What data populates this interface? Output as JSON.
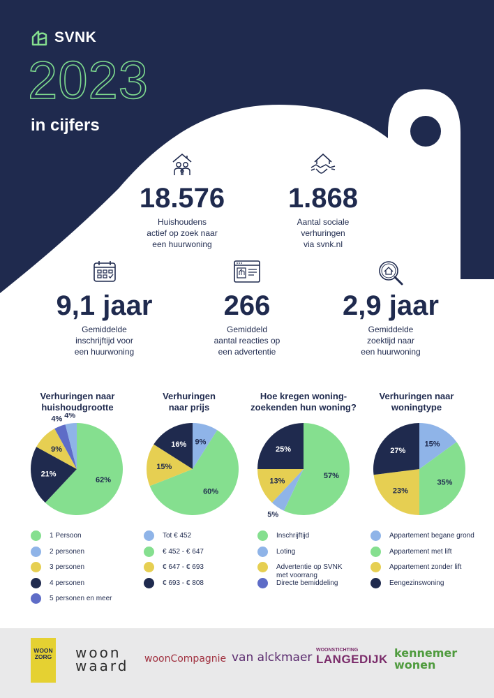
{
  "brand": {
    "name": "SVNK"
  },
  "header": {
    "year": "2023",
    "subtitle": "in cijfers"
  },
  "colors": {
    "navy": "#1f2a4e",
    "green": "#85df8f",
    "lightblue": "#8fb4e8",
    "yellow": "#e6cf52",
    "purple": "#5e6cc7"
  },
  "stats": [
    {
      "icon": "house-family-icon",
      "value": "18.576",
      "desc": "Huishoudens\nactief op zoek naar\neen huurwoning"
    },
    {
      "icon": "handshake-house-icon",
      "value": "1.868",
      "desc": "Aantal sociale\nverhuringen\nvia svnk.nl"
    },
    {
      "icon": "calendar-icon",
      "value": "9,1 jaar",
      "desc": "Gemiddelde\ninschrijftijd voor\neen huurwoning"
    },
    {
      "icon": "browser-ad-icon",
      "value": "266",
      "desc": "Gemiddeld\naantal reacties op\neen advertentie"
    },
    {
      "icon": "magnifier-house-icon",
      "value": "2,9 jaar",
      "desc": "Gemiddelde\nzoektijd naar\neen huurwoning"
    }
  ],
  "chart_data": [
    {
      "type": "pie",
      "title": "Verhuringen naar\nhuishoudgrootte",
      "categories": [
        "1 Persoon",
        "2 personen",
        "3 personen",
        "4 personen",
        "5 personen en meer"
      ],
      "values": [
        62,
        4,
        9,
        21,
        4
      ],
      "labels": [
        "62%",
        "4%",
        "9%",
        "21%",
        "4%"
      ],
      "colors": [
        "#85df8f",
        "#8fb4e8",
        "#e6cf52",
        "#1f2a4e",
        "#5e6cc7"
      ],
      "slice_order": [
        0,
        3,
        2,
        4,
        1
      ]
    },
    {
      "type": "pie",
      "title": "Verhuringen\nnaar prijs",
      "categories": [
        "Tot € 452",
        "€ 452 - € 647",
        "€ 647 - € 693",
        "€ 693 - € 808"
      ],
      "values": [
        9,
        60,
        15,
        16
      ],
      "labels": [
        "9%",
        "60%",
        "15%",
        "16%"
      ],
      "colors": [
        "#8fb4e8",
        "#85df8f",
        "#e6cf52",
        "#1f2a4e"
      ],
      "slice_order": [
        0,
        1,
        2,
        3
      ]
    },
    {
      "type": "pie",
      "title": "Hoe kregen woning-\nzoekenden hun woning?",
      "categories": [
        "Inschrijftijd",
        "Loting",
        "Advertentie op SVNK\nmet voorrang",
        "Directe bemiddeling"
      ],
      "values": [
        57,
        5,
        13,
        25
      ],
      "labels": [
        "57%",
        "5%",
        "13%",
        "25%"
      ],
      "colors": [
        "#85df8f",
        "#8fb4e8",
        "#e6cf52",
        "#1f2a4e"
      ],
      "legend_colors": [
        "#85df8f",
        "#8fb4e8",
        "#e6cf52",
        "#5e6cc7"
      ],
      "slice_order": [
        0,
        1,
        2,
        3
      ]
    },
    {
      "type": "pie",
      "title": "Verhuringen naar\nwoningtype",
      "categories": [
        "Appartement begane grond",
        "Appartement met lift",
        "Appartement zonder lift",
        "Eengezinswoning"
      ],
      "values": [
        15,
        35,
        23,
        27
      ],
      "labels": [
        "15%",
        "35%",
        "23%",
        "27%"
      ],
      "colors": [
        "#8fb4e8",
        "#85df8f",
        "#e6cf52",
        "#1f2a4e"
      ],
      "slice_order": [
        0,
        1,
        2,
        3
      ]
    }
  ],
  "partners": [
    {
      "name": "woonzorg-logo",
      "text": "WOON\nZORG"
    },
    {
      "name": "woonwaard-logo",
      "text": "woon\nwaard"
    },
    {
      "name": "wooncompagnie-logo",
      "text": "woonCompagnie"
    },
    {
      "name": "vanalckmaer-logo",
      "text": "van alckmaer"
    },
    {
      "name": "langedijk-logo",
      "text": "LANGEDIJK",
      "sub": "WOONSTICHTING"
    },
    {
      "name": "kennemerwonen-logo",
      "text": "kennemer\nwonen"
    }
  ]
}
